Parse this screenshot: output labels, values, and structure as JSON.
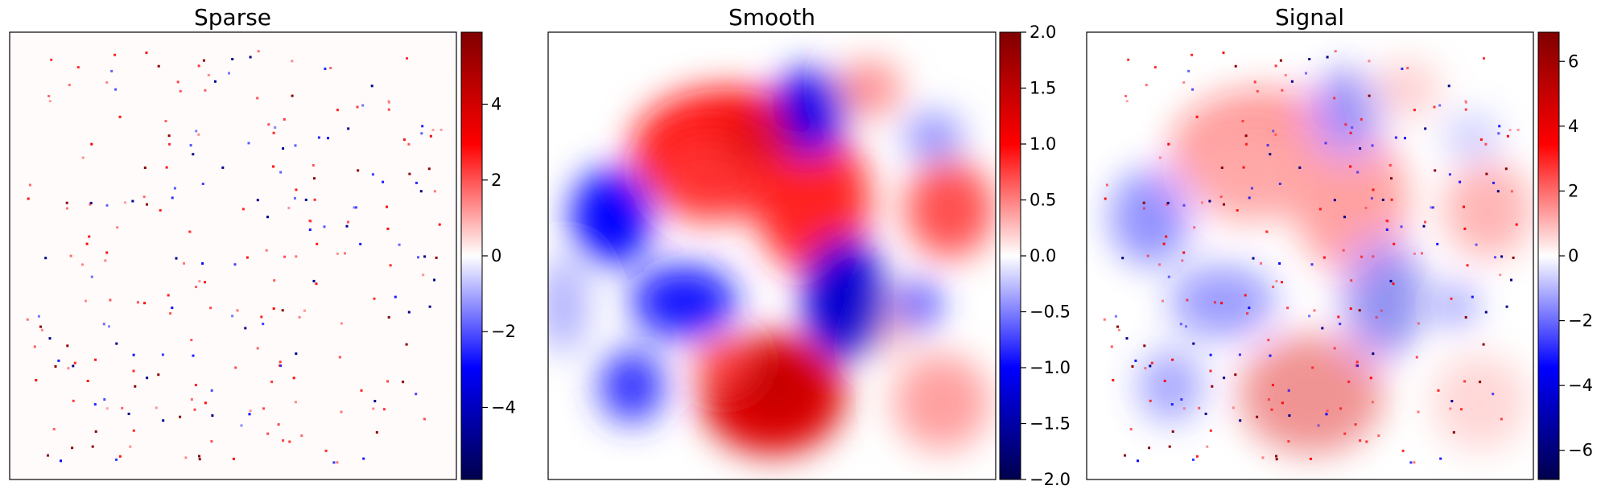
{
  "chart_data": [
    {
      "type": "heatmap",
      "title": "Sparse",
      "colormap": "seismic",
      "colorbar": {
        "range": [
          -5.9,
          5.9
        ],
        "ticks": [
          4,
          2,
          0,
          -2,
          -4
        ],
        "tick_labels": [
          "4",
          "2",
          "0",
          "−2",
          "−4"
        ]
      },
      "axes_ticks": "none",
      "content": "sparse isolated red and blue point spikes on a near-zero background"
    },
    {
      "type": "heatmap",
      "title": "Smooth",
      "colormap": "seismic",
      "colorbar": {
        "range": [
          -2.0,
          2.0
        ],
        "ticks": [
          2.0,
          1.5,
          1.0,
          0.5,
          0.0,
          -0.5,
          -1.0,
          -1.5,
          -2.0
        ],
        "tick_labels": [
          "2.0",
          "1.5",
          "1.0",
          "0.5",
          "0.0",
          "−0.5",
          "−1.0",
          "−1.5",
          "−2.0"
        ]
      },
      "axes_ticks": "none",
      "content": "smooth field of large positive (red) and negative (blue) blobs"
    },
    {
      "type": "heatmap",
      "title": "Signal",
      "colormap": "seismic",
      "colorbar": {
        "range": [
          -6.9,
          6.9
        ],
        "ticks": [
          6,
          4,
          2,
          0,
          -2,
          -4,
          -6
        ],
        "tick_labels": [
          "6",
          "4",
          "2",
          "0",
          "−2",
          "−4",
          "−6"
        ]
      },
      "axes_ticks": "none",
      "content": "sum of smooth field and sparse spikes"
    }
  ]
}
